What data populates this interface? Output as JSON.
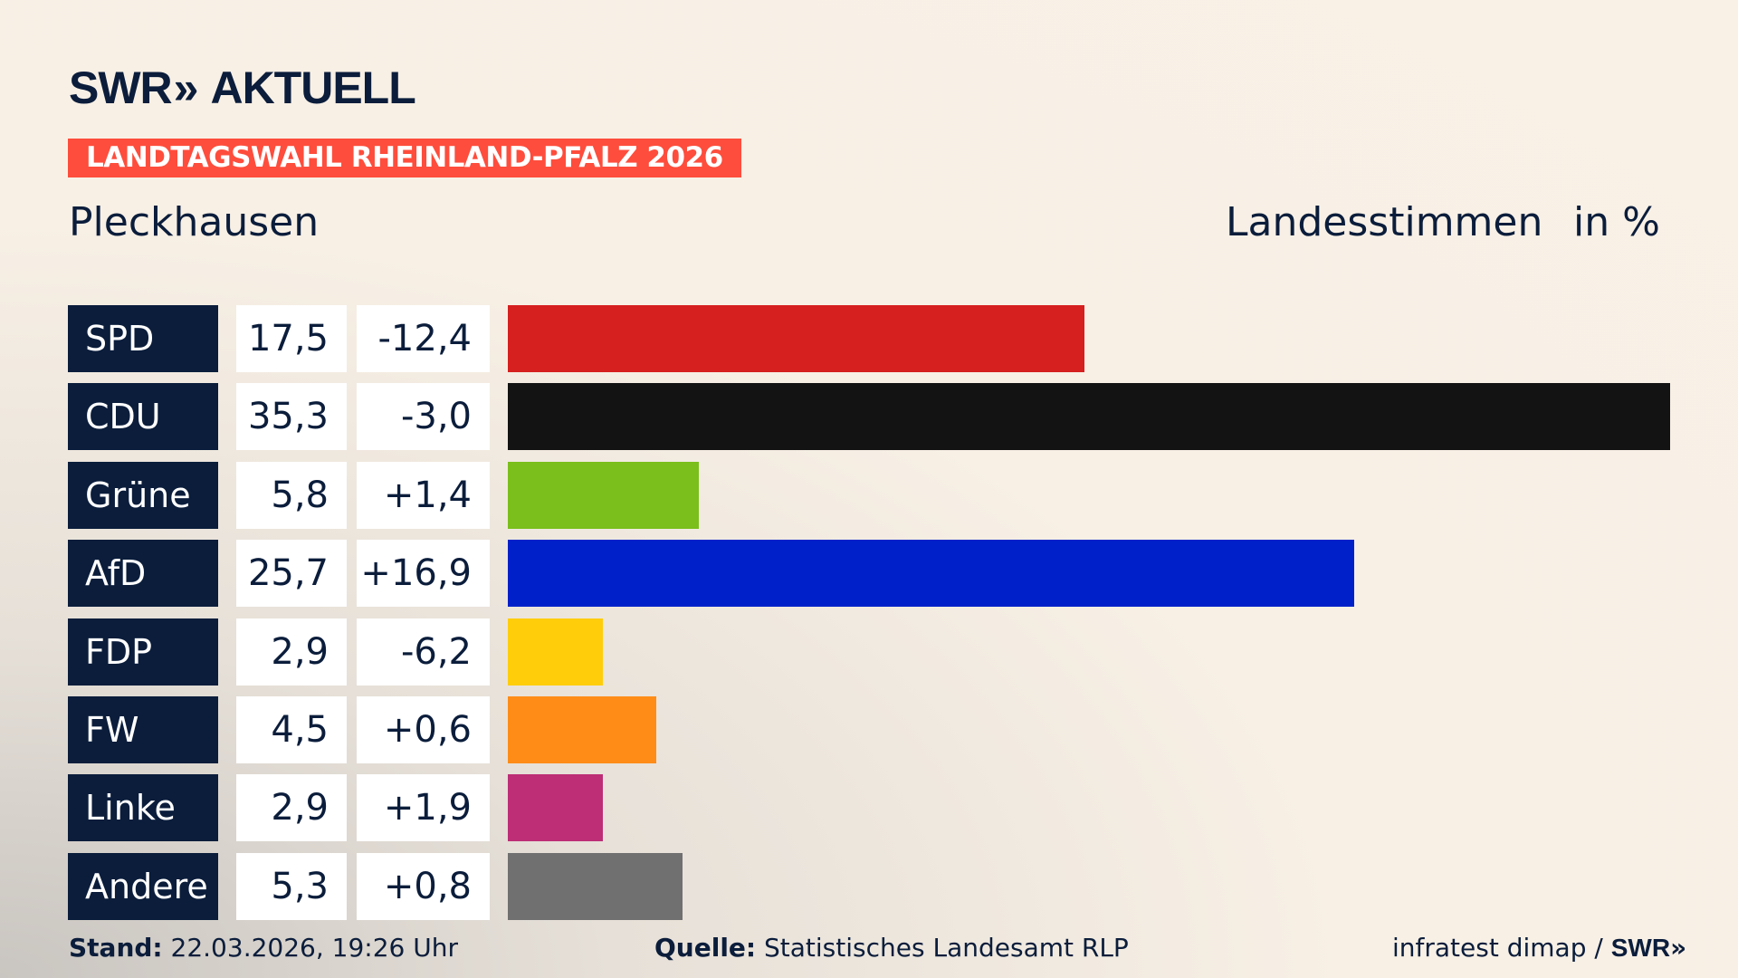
{
  "brand": {
    "logo": "SWR",
    "product": "AKTUELL"
  },
  "banner": "LANDTAGSWAHL RHEINLAND-PFALZ 2026",
  "place": "Pleckhausen",
  "header": {
    "vote_type": "Landesstimmen",
    "unit": "in %"
  },
  "chart_data": {
    "type": "bar",
    "orientation": "horizontal",
    "categories": [
      "SPD",
      "CDU",
      "Grüne",
      "AfD",
      "FDP",
      "FW",
      "Linke",
      "Andere"
    ],
    "values": [
      "17,5",
      "35,3",
      "5,8",
      "25,7",
      "2,9",
      "4,5",
      "2,9",
      "5,3"
    ],
    "numeric_values": [
      17.5,
      35.3,
      5.8,
      25.7,
      2.9,
      4.5,
      2.9,
      5.3
    ],
    "changes": [
      "-12,4",
      "-3,0",
      "+1,4",
      "+16,9",
      "-6,2",
      "+0,6",
      "+1,9",
      "+0,8"
    ],
    "colors": [
      "#d61f1f",
      "#131313",
      "#7abf1b",
      "#0021c9",
      "#ffcd0a",
      "#ff8c17",
      "#bd2e76",
      "#707070"
    ],
    "xlim": [
      0,
      35.3
    ]
  },
  "footer": {
    "stand_label": "Stand:",
    "stand_value": "22.03.2026, 19:26 Uhr",
    "source_label": "Quelle:",
    "source_value": "Statistisches Landesamt RLP",
    "credit": "infratest dimap /",
    "credit_logo": "SWR"
  }
}
